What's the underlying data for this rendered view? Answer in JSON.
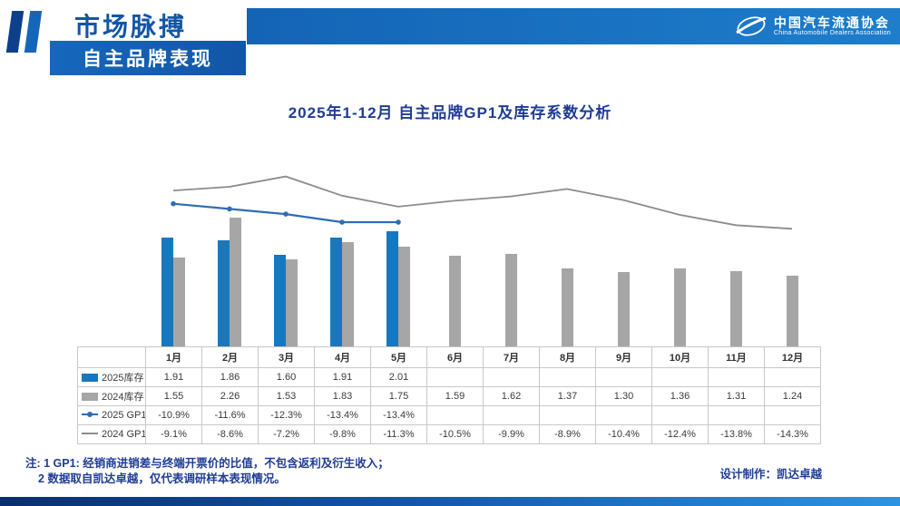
{
  "header": {
    "title_line1": "市场脉搏",
    "title_line2": "自主品牌表现",
    "logo": {
      "name_cn": "中国汽车流通协会",
      "name_en": "China Automobile Dealers Association"
    }
  },
  "chart_title": "2025年1-12月 自主品牌GP1及库存系数分析",
  "chart_data": {
    "type": "bar+line",
    "title": "2025年1-12月 自主品牌GP1及库存系数分析",
    "categories": [
      "1月",
      "2月",
      "3月",
      "4月",
      "5月",
      "6月",
      "7月",
      "8月",
      "9月",
      "10月",
      "11月",
      "12月"
    ],
    "series": [
      {
        "id": "inv-2025",
        "name": "2025库存",
        "kind": "bar",
        "color": "#1878be",
        "values": [
          1.91,
          1.86,
          1.6,
          1.91,
          2.01,
          null,
          null,
          null,
          null,
          null,
          null,
          null
        ]
      },
      {
        "id": "inv-2024",
        "name": "2024库存",
        "kind": "bar",
        "color": "#a6a6a6",
        "values": [
          1.55,
          2.26,
          1.53,
          1.83,
          1.75,
          1.59,
          1.62,
          1.37,
          1.3,
          1.36,
          1.31,
          1.24
        ]
      },
      {
        "id": "gp1-2025",
        "name": "2025 GP1",
        "kind": "line",
        "color": "#2e6db4",
        "marker": true,
        "values": [
          -10.9,
          -11.6,
          -12.3,
          -13.4,
          -13.4,
          null,
          null,
          null,
          null,
          null,
          null,
          null
        ]
      },
      {
        "id": "gp1-2024",
        "name": "2024 GP1",
        "kind": "line",
        "color": "#8c8c8c",
        "marker": false,
        "values": [
          -9.1,
          -8.6,
          -7.2,
          -9.8,
          -11.3,
          -10.5,
          -9.9,
          -8.9,
          -10.4,
          -12.4,
          -13.8,
          -14.3
        ]
      }
    ],
    "bar_axis_range": [
      0,
      2.6
    ],
    "line_axis_range": [
      -15,
      -7
    ],
    "grid": false,
    "legend_position": "table-left"
  },
  "footnotes": [
    "注: 1 GP1: 经销商进销差与终端开票价的比值，不包含返利及衍生收入；",
    "2 数据取自凯达卓越，仅代表调研样本表现情况。"
  ],
  "credit": "设计制作：凯达卓越"
}
